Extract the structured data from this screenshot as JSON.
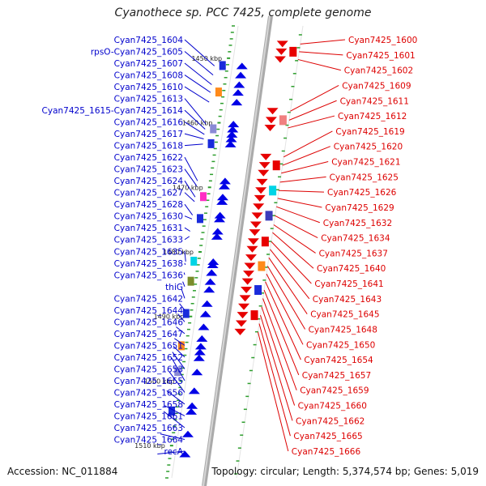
{
  "title": "Cyanothece sp. PCC 7425, complete genome",
  "footer": {
    "accession": "Accession: NC_011884",
    "summary": "Topology: circular; Length: 5,374,574 bp; Genes: 5,019"
  },
  "colors": {
    "left_strand": "#0000cc",
    "right_strand": "#dd0000",
    "axis": "#aaaaaa",
    "tick": "#2e9e2e"
  },
  "scale": {
    "start_kbp": 1445,
    "end_kbp": 1515,
    "marks": [
      "1450 kbp",
      "1460 kbp",
      "1470 kbp",
      "1480 kbp",
      "1490 kbp",
      "1500 kbp",
      "1510 kbp"
    ]
  },
  "left_genes": [
    {
      "label": "Cyan7425_1604",
      "kbp": 1451.2
    },
    {
      "label": "rpsO-Cyan7425_1605",
      "kbp": 1452.6
    },
    {
      "label": "Cyan7425_1607",
      "kbp": 1454.1
    },
    {
      "label": "Cyan7425_1608",
      "kbp": 1455.3
    },
    {
      "label": "Cyan7425_1610",
      "kbp": 1456.8
    },
    {
      "label": "Cyan7425_1613",
      "kbp": 1460.2
    },
    {
      "label": "Cyan7425_1615-Cyan7425_1614",
      "kbp": 1461.0
    },
    {
      "label": "Cyan7425_1616",
      "kbp": 1461.8
    },
    {
      "label": "Cyan7425_1617",
      "kbp": 1462.5
    },
    {
      "label": "Cyan7425_1618",
      "kbp": 1463.3
    },
    {
      "label": "Cyan7425_1622",
      "kbp": 1469.0
    },
    {
      "label": "Cyan7425_1623",
      "kbp": 1469.8
    },
    {
      "label": "Cyan7425_1624",
      "kbp": 1471.5
    },
    {
      "label": "Cyan7425_1627",
      "kbp": 1472.2
    },
    {
      "label": "Cyan7425_1628",
      "kbp": 1474.3
    },
    {
      "label": "Cyan7425_1630",
      "kbp": 1474.9
    },
    {
      "label": "Cyan7425_1631",
      "kbp": 1476.8
    },
    {
      "label": "Cyan7425_1633",
      "kbp": 1477.6
    },
    {
      "label": "Cyan7425_1635",
      "kbp": 1481.5
    },
    {
      "label": "Cyan7425_1638",
      "kbp": 1482.0
    },
    {
      "label": "Cyan7425_1636",
      "kbp": 1483.2
    },
    {
      "label": "thiG",
      "kbp": 1484.6
    },
    {
      "label": "Cyan7425_1642",
      "kbp": 1485.8
    },
    {
      "label": "Cyan7425_1644",
      "kbp": 1488.0
    },
    {
      "label": "Cyan7425_1646",
      "kbp": 1489.6
    },
    {
      "label": "Cyan7425_1647",
      "kbp": 1491.6
    },
    {
      "label": "Cyan7425_1651",
      "kbp": 1493.4
    },
    {
      "label": "Cyan7425_1652",
      "kbp": 1494.6
    },
    {
      "label": "Cyan7425_1653",
      "kbp": 1495.5
    },
    {
      "label": "Cyan7425_1655",
      "kbp": 1496.4
    },
    {
      "label": "Cyan7425_1656",
      "kbp": 1498.6
    },
    {
      "label": "Cyan7425_1658",
      "kbp": 1501.5
    },
    {
      "label": "Cyan7425_1661",
      "kbp": 1503.8
    },
    {
      "label": "Cyan7425_1663",
      "kbp": 1504.7
    },
    {
      "label": "Cyan7425_1664",
      "kbp": 1508.2
    },
    {
      "label": "recA",
      "kbp": 1511.3
    }
  ],
  "right_genes": [
    {
      "label": "Cyan7425_1600",
      "kbp": 1447.8
    },
    {
      "label": "Cyan7425_1601",
      "kbp": 1449.0
    },
    {
      "label": "Cyan7425_1602",
      "kbp": 1450.2
    },
    {
      "label": "Cyan7425_1609",
      "kbp": 1458.2
    },
    {
      "label": "Cyan7425_1611",
      "kbp": 1459.6
    },
    {
      "label": "Cyan7425_1612",
      "kbp": 1460.8
    },
    {
      "label": "Cyan7425_1619",
      "kbp": 1465.3
    },
    {
      "label": "Cyan7425_1620",
      "kbp": 1466.6
    },
    {
      "label": "Cyan7425_1621",
      "kbp": 1467.8
    },
    {
      "label": "Cyan7425_1625",
      "kbp": 1469.2
    },
    {
      "label": "Cyan7425_1626",
      "kbp": 1470.5
    },
    {
      "label": "Cyan7425_1629",
      "kbp": 1471.7
    },
    {
      "label": "Cyan7425_1632",
      "kbp": 1473.0
    },
    {
      "label": "Cyan7425_1634",
      "kbp": 1474.4
    },
    {
      "label": "Cyan7425_1637",
      "kbp": 1475.8
    },
    {
      "label": "Cyan7425_1640",
      "kbp": 1477.0
    },
    {
      "label": "Cyan7425_1641",
      "kbp": 1478.4
    },
    {
      "label": "Cyan7425_1643",
      "kbp": 1479.6
    },
    {
      "label": "Cyan7425_1645",
      "kbp": 1480.9
    },
    {
      "label": "Cyan7425_1648",
      "kbp": 1482.2
    },
    {
      "label": "Cyan7425_1650",
      "kbp": 1483.4
    },
    {
      "label": "Cyan7425_1654",
      "kbp": 1484.6
    },
    {
      "label": "Cyan7425_1657",
      "kbp": 1485.9
    },
    {
      "label": "Cyan7425_1659",
      "kbp": 1487.2
    },
    {
      "label": "Cyan7425_1660",
      "kbp": 1488.5
    },
    {
      "label": "Cyan7425_1662",
      "kbp": 1489.8
    },
    {
      "label": "Cyan7425_1665",
      "kbp": 1491.1
    },
    {
      "label": "Cyan7425_1666",
      "kbp": 1492.4
    }
  ]
}
